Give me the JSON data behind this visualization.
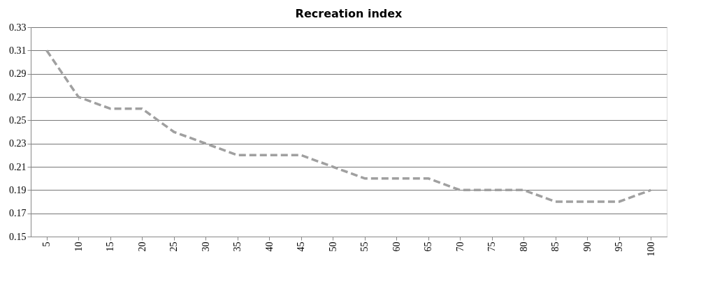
{
  "chart_data": {
    "type": "line",
    "title": "Recreation index",
    "categories": [
      "5",
      "10",
      "15",
      "20",
      "25",
      "30",
      "35",
      "40",
      "45",
      "50",
      "55",
      "60",
      "65",
      "70",
      "75",
      "80",
      "85",
      "90",
      "95",
      "100"
    ],
    "series": [
      {
        "color": "#a0a0a0",
        "values": [
          0.31,
          0.27,
          0.26,
          0.26,
          0.24,
          0.23,
          0.22,
          0.22,
          0.22,
          0.21,
          0.2,
          0.2,
          0.2,
          0.19,
          0.19,
          0.19,
          0.18,
          0.18,
          0.18,
          0.19
        ]
      }
    ],
    "ylim": [
      0.15,
      0.33
    ],
    "yticks": [
      0.15,
      0.17,
      0.19,
      0.21,
      0.23,
      0.25,
      0.27,
      0.29,
      0.31,
      0.33
    ],
    "grid": "y",
    "marker": "none",
    "line_style": "dashed"
  }
}
